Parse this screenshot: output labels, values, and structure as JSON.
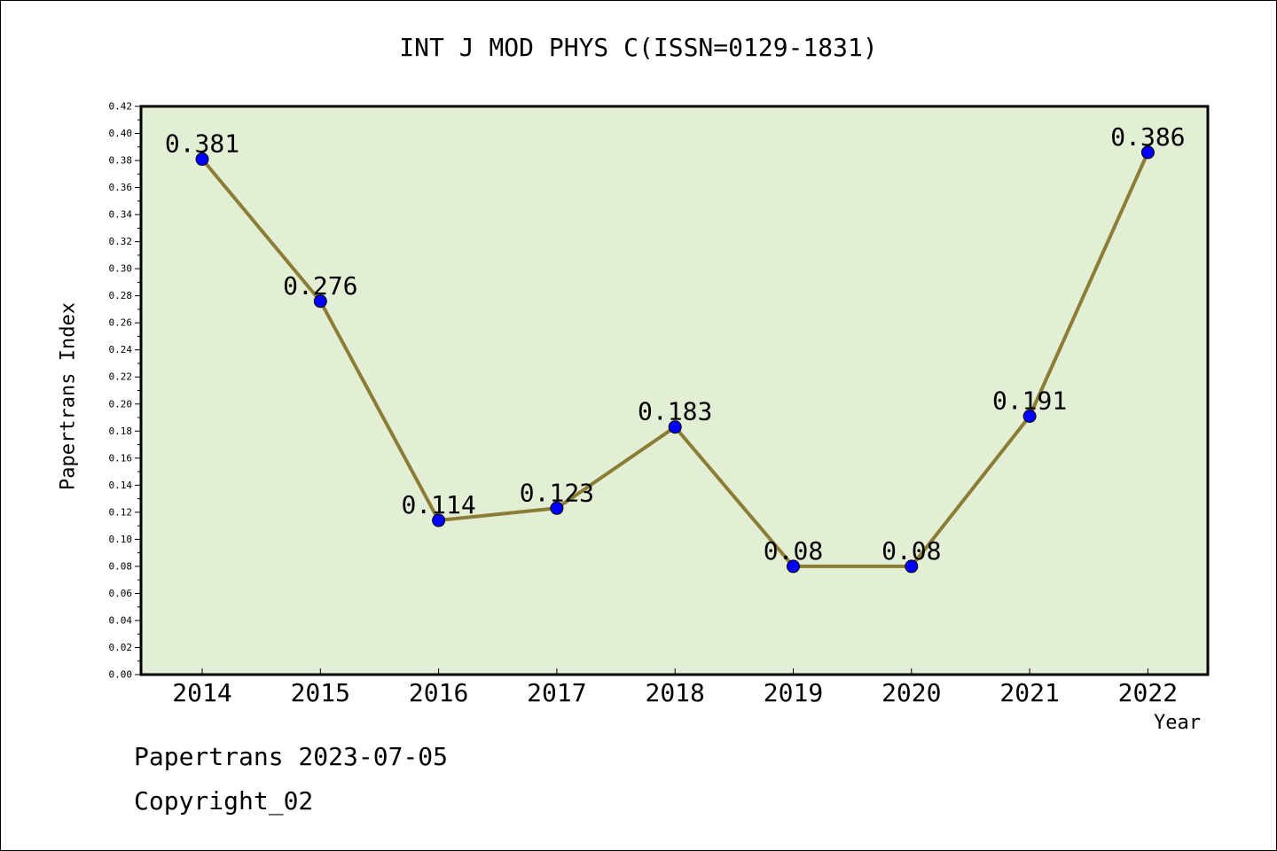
{
  "chart_data": {
    "type": "line",
    "title": "INT J MOD PHYS C(ISSN=0129-1831)",
    "xlabel": "Year",
    "ylabel": "Papertrans Index",
    "categories": [
      "2014",
      "2015",
      "2016",
      "2017",
      "2018",
      "2019",
      "2020",
      "2021",
      "2022"
    ],
    "values": [
      0.381,
      0.276,
      0.114,
      0.123,
      0.183,
      0.08,
      0.08,
      0.191,
      0.386
    ],
    "data_labels": [
      "0.381",
      "0.276",
      "0.114",
      "0.123",
      "0.183",
      "0.08",
      "0.08",
      "0.191",
      "0.386"
    ],
    "ylim": [
      0,
      0.42
    ],
    "y_ticks": [
      "0.00",
      "0.02",
      "0.04",
      "0.06",
      "0.08",
      "0.10",
      "0.12",
      "0.14",
      "0.16",
      "0.18",
      "0.20",
      "0.22",
      "0.24",
      "0.26",
      "0.28",
      "0.30",
      "0.32",
      "0.34",
      "0.36",
      "0.38",
      "0.40",
      "0.42"
    ],
    "grid": false,
    "colors": {
      "plot_background": "#e2efd4",
      "line": "#8b7d35",
      "marker": "#0000ff"
    }
  },
  "footer": {
    "date_text": "Papertrans 2023-07-05",
    "copyright_text": "Copyright_02"
  }
}
